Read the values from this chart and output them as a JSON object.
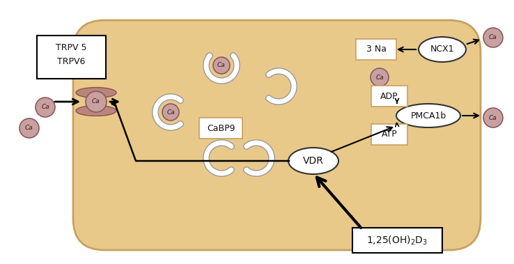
{
  "bg_color": "#ffffff",
  "cell_color": "#e8c98a",
  "cell_edge_color": "#c8a060",
  "ca_circle_color": "#c9a0a0",
  "ca_circle_edge": "#8b5a5a",
  "white": "#ffffff",
  "box_color": "#c8a060",
  "vdr_label": "VDR",
  "pmca_label": "PMCA1b",
  "atp_label": "ATP",
  "adp_label": "ADP",
  "cabp_label": "CaBP9",
  "na_label": "3 Na",
  "ncx_label": "NCX1",
  "ca_label": "Ca",
  "trpv6_label": "TRPV6",
  "trpv5_label": "TRPV 5"
}
